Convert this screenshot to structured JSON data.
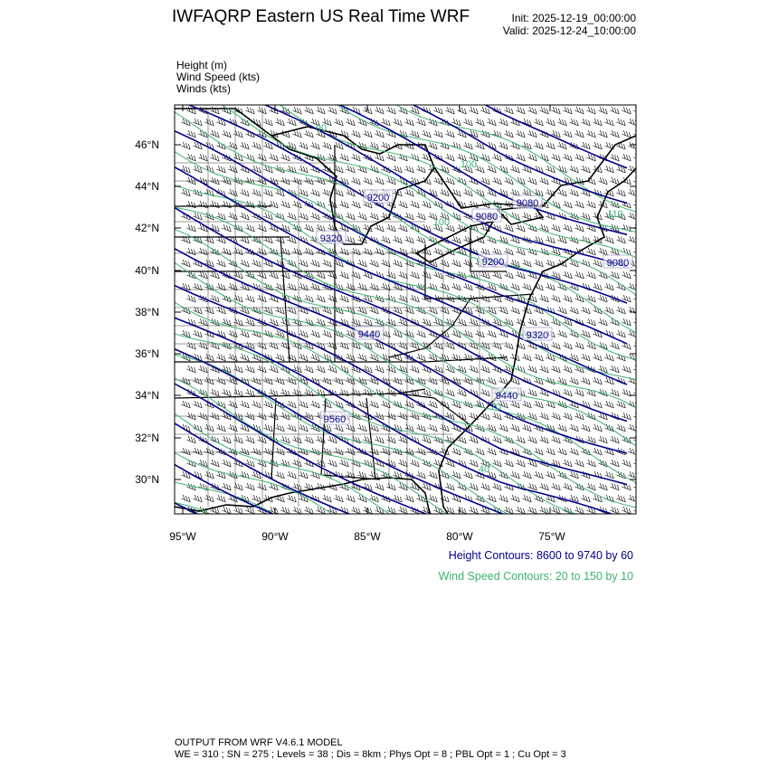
{
  "header": {
    "title": "IWFAQRP Eastern US Real Time WRF",
    "init": "Init: 2025-12-19_00:00:00",
    "valid": "Valid: 2025-12-24_10:00:00"
  },
  "fields": [
    "Height   (m)",
    "Wind Speed   (kts)",
    "Winds   (kts)"
  ],
  "map": {
    "lat_ticks": [
      "46°N",
      "44°N",
      "42°N",
      "40°N",
      "38°N",
      "36°N",
      "34°N",
      "32°N",
      "30°N"
    ],
    "lon_ticks": [
      "95°W",
      "90°W",
      "85°W",
      "80°W",
      "75°W"
    ],
    "height_contour_color": "#00008b",
    "speed_contour_color": "#3cb371",
    "height_labels": [
      "9200",
      "9080",
      "9080",
      "9320",
      "9200",
      "9080",
      "9440",
      "9320",
      "9440",
      "9560"
    ],
    "speed_labels": [
      "90",
      "100",
      "110",
      "100",
      "70",
      "40"
    ]
  },
  "legend": {
    "height_contours": "Height Contours: 8600 to 9740 by 60",
    "speed_contours": "Wind Speed Contours: 20 to 150 by 10"
  },
  "footer": {
    "line1": "OUTPUT FROM WRF V4.6.1 MODEL",
    "line2": "WE = 310 ; SN = 275 ; Levels = 38 ; Dis = 8km ; Phys Opt = 8 ; PBL Opt = 1 ; Cu Opt = 3"
  }
}
